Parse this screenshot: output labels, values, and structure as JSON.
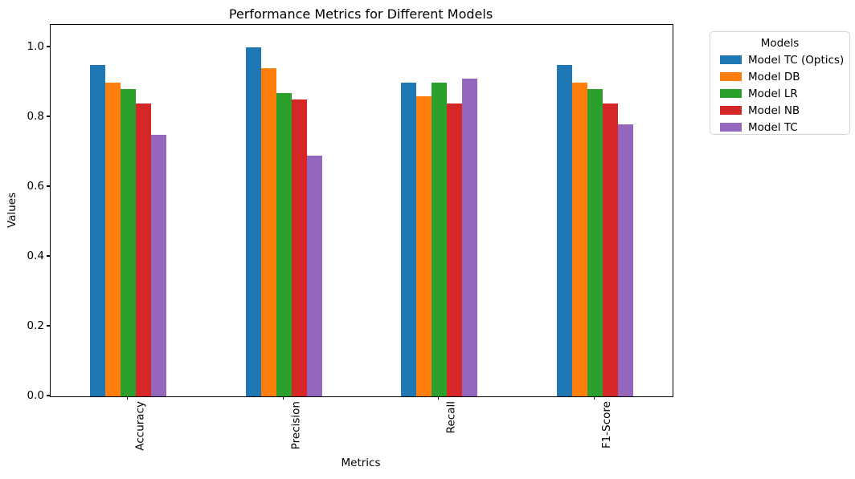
{
  "chart_data": {
    "type": "bar",
    "title": "Performance Metrics for Different Models",
    "xlabel": "Metrics",
    "ylabel": "Values",
    "categories": [
      "Accuracy",
      "Precision",
      "Recall",
      "F1-Score"
    ],
    "series": [
      {
        "name": "Model TC (Optics)",
        "color": "#1f77b4",
        "values": [
          0.95,
          1.0,
          0.9,
          0.95
        ]
      },
      {
        "name": "Model DB",
        "color": "#ff7f0e",
        "values": [
          0.9,
          0.94,
          0.86,
          0.9
        ]
      },
      {
        "name": "Model LR",
        "color": "#2ca02c",
        "values": [
          0.88,
          0.87,
          0.9,
          0.88
        ]
      },
      {
        "name": "Model NB",
        "color": "#d62728",
        "values": [
          0.84,
          0.85,
          0.84,
          0.84
        ]
      },
      {
        "name": "Model TC",
        "color": "#9467bd",
        "values": [
          0.75,
          0.69,
          0.91,
          0.78
        ]
      }
    ],
    "legend": {
      "title": "Models",
      "position": "outside-upper-right"
    },
    "yticks": [
      0.0,
      0.2,
      0.4,
      0.6,
      0.8,
      1.0
    ],
    "ytick_labels": [
      "0.0",
      "0.2",
      "0.4",
      "0.6",
      "0.8",
      "1.0"
    ],
    "ylim": [
      0,
      1.064
    ],
    "grid": false
  }
}
